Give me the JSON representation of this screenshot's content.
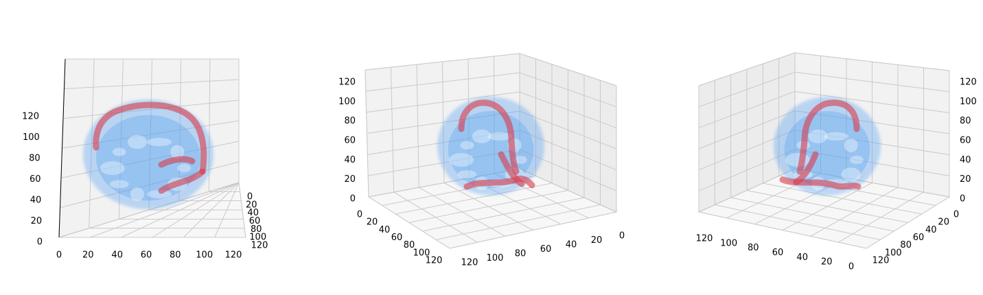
{
  "chart_data": [
    {
      "type": "3d-volume",
      "view": "lateral",
      "axes": {
        "x": {
          "ticks": [
            "0",
            "20",
            "40",
            "60",
            "80",
            "100",
            "120"
          ],
          "range": [
            0,
            128
          ]
        },
        "y": {
          "ticks": [
            "0",
            "20",
            "40",
            "60",
            "80",
            "100",
            "120"
          ],
          "range": [
            0,
            128
          ]
        },
        "z": {
          "ticks": [
            "0",
            "20",
            "40",
            "60",
            "80",
            "100",
            "120"
          ],
          "range": [
            0,
            128
          ]
        }
      },
      "layers": [
        {
          "name": "",
          "role": "skull surface",
          "color": "#4d9ef0",
          "alpha": 0.35
        },
        {
          "name": "",
          "role": "dural venous sinuses",
          "color": "#d93a4a",
          "alpha": 0.6
        }
      ],
      "grid": true
    },
    {
      "type": "3d-volume",
      "view": "oblique-posterior-left",
      "axes": {
        "x": {
          "ticks": [
            "0",
            "20",
            "40",
            "60",
            "80",
            "100",
            "120"
          ],
          "range": [
            0,
            128
          ]
        },
        "y": {
          "ticks": [
            "0",
            "20",
            "40",
            "60",
            "80",
            "100",
            "120"
          ],
          "range": [
            0,
            128
          ]
        },
        "z": {
          "ticks": [
            "0",
            "20",
            "40",
            "60",
            "80",
            "100",
            "120"
          ],
          "range": [
            0,
            128
          ]
        }
      },
      "layers": [
        {
          "name": "",
          "role": "skull surface",
          "color": "#4d9ef0",
          "alpha": 0.35
        },
        {
          "name": "",
          "role": "dural venous sinuses",
          "color": "#d93a4a",
          "alpha": 0.6
        }
      ],
      "grid": true
    },
    {
      "type": "3d-volume",
      "view": "oblique-posterior-right",
      "axes": {
        "x": {
          "ticks": [
            "0",
            "20",
            "40",
            "60",
            "80",
            "100",
            "120"
          ],
          "range": [
            0,
            128
          ]
        },
        "y": {
          "ticks": [
            "0",
            "20",
            "40",
            "60",
            "80",
            "100",
            "120"
          ],
          "range": [
            0,
            128
          ]
        },
        "z": {
          "ticks": [
            "0",
            "20",
            "40",
            "60",
            "80",
            "100",
            "120"
          ],
          "range": [
            0,
            128
          ]
        }
      },
      "layers": [
        {
          "name": "",
          "role": "skull surface",
          "color": "#4d9ef0",
          "alpha": 0.35
        },
        {
          "name": "",
          "role": "dural venous sinuses",
          "color": "#d93a4a",
          "alpha": 0.6
        }
      ],
      "grid": true
    }
  ]
}
